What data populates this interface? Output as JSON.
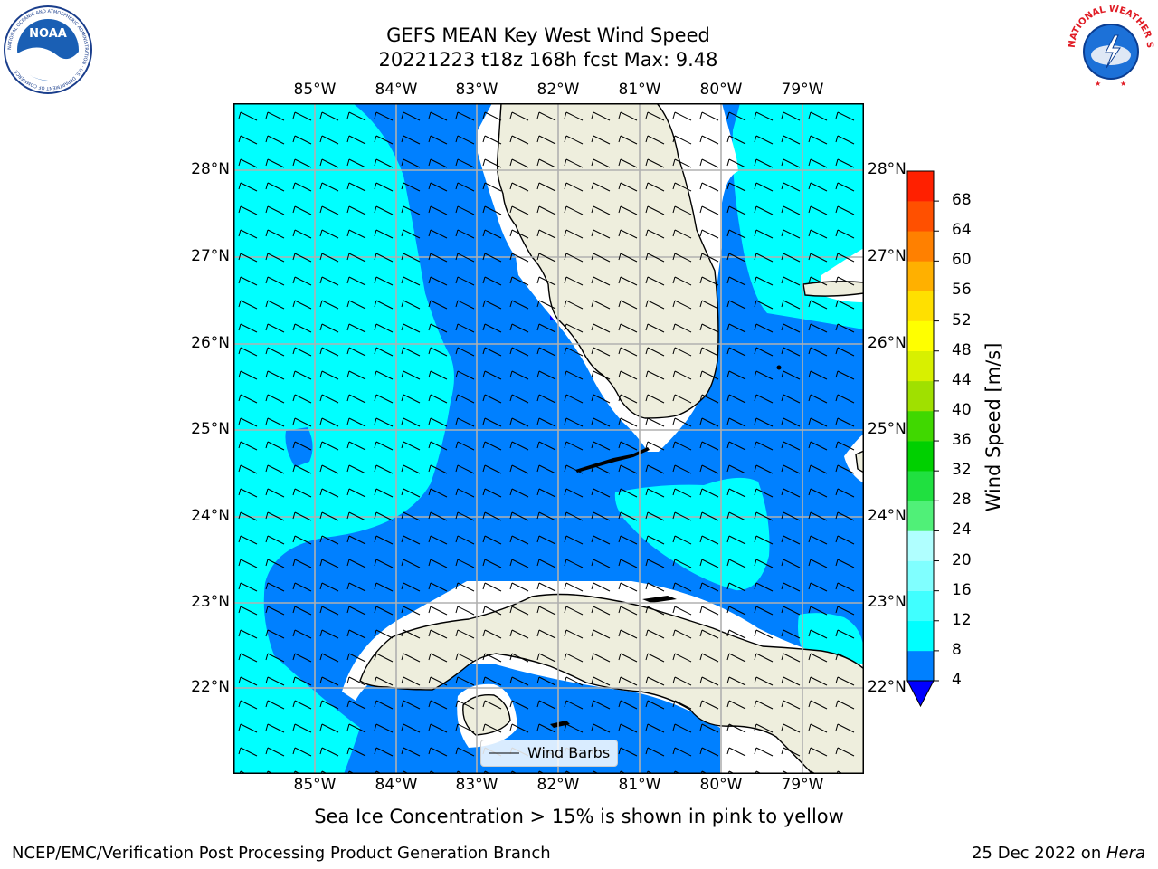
{
  "title": {
    "line1": "GEFS MEAN Key West Wind Speed",
    "line2": "20221223 t18z 168h fcst   Max: 9.48"
  },
  "map": {
    "lon_labels": [
      "85°W",
      "84°W",
      "83°W",
      "82°W",
      "81°W",
      "80°W",
      "79°W"
    ],
    "lat_labels": [
      "28°N",
      "27°N",
      "26°N",
      "25°N",
      "24°N",
      "23°N",
      "22°N"
    ],
    "legend_label": "Wind Barbs"
  },
  "colorbar": {
    "title": "Wind Speed [m/s]",
    "levels": [
      4,
      8,
      12,
      16,
      20,
      24,
      28,
      32,
      36,
      40,
      44,
      48,
      52,
      56,
      60,
      64,
      68
    ],
    "colors": [
      "#0080ff",
      "#00ffff",
      "#40ffff",
      "#80ffff",
      "#b0ffff",
      "#50f078",
      "#20e040",
      "#00d000",
      "#40d800",
      "#a0e000",
      "#d8f000",
      "#ffff00",
      "#ffe000",
      "#ffb000",
      "#ff8000",
      "#ff5000",
      "#ff2000"
    ],
    "under_color": "#0000ff"
  },
  "colors": {
    "land": "#eeeedd",
    "sea_low": "#0080ff",
    "sea_mid": "#00ffff",
    "sea_under": "#0000ff",
    "grid": "#b0b0b0"
  },
  "logos": {
    "noaa_text": "NOAA",
    "noaa_ring": "NATIONAL OCEANIC AND ATMOSPHERIC ADMINISTRATION · U.S. DEPARTMENT OF COMMERCE",
    "nws_ring": "NATIONAL WEATHER SERVICE"
  },
  "subtitle": "Sea Ice Concentration > 15% is shown in pink to yellow",
  "footer": {
    "left": "NCEP/EMC/Verification Post Processing Product Generation Branch",
    "right_date": "25 Dec 2022 on ",
    "right_host": "Hera"
  }
}
